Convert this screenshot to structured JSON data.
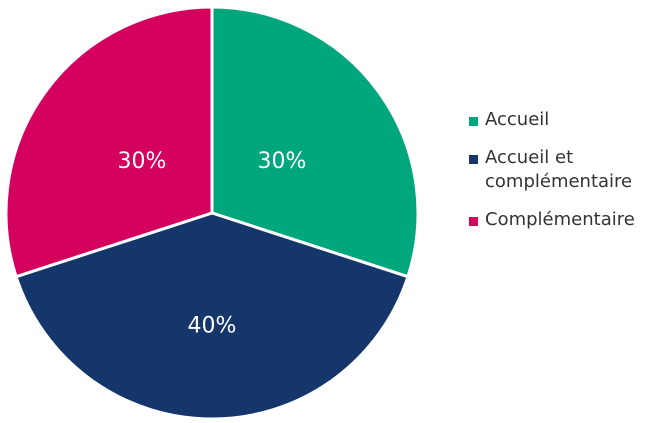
{
  "chart_data": {
    "type": "pie",
    "categories": [
      "Accueil",
      "Accueil et complémentaire",
      "Complémentaire"
    ],
    "values": [
      30,
      40,
      30
    ],
    "value_labels": [
      "30%",
      "40%",
      "30%"
    ],
    "colors": [
      "#00a77d",
      "#14366b",
      "#d5015f"
    ],
    "legend": "right"
  }
}
